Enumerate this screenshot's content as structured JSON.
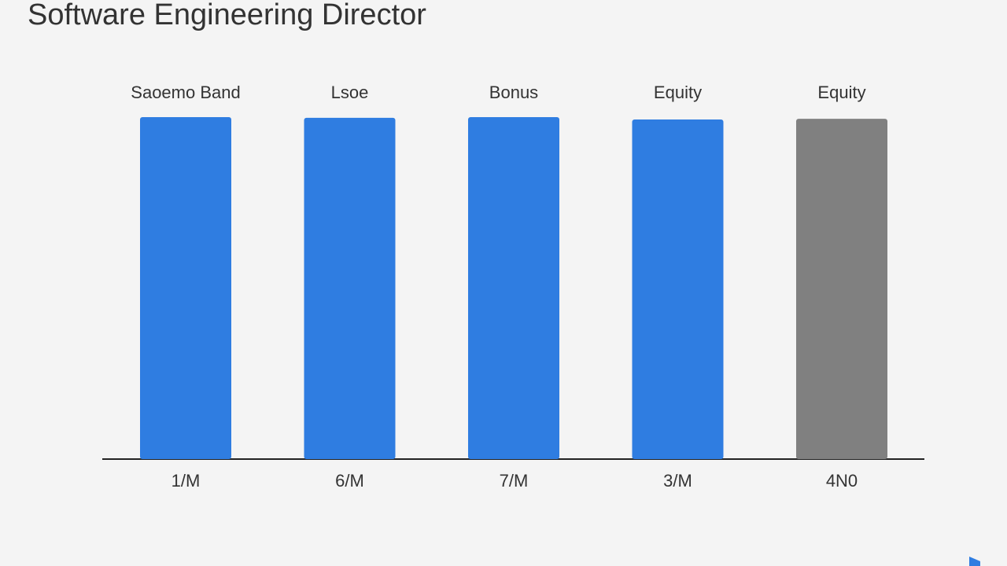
{
  "chart_data": {
    "type": "bar",
    "title": "Software Engineering Director",
    "categories": [
      "Saoemo Band",
      "Lsoe",
      "Bonus",
      "Equity",
      "Equity"
    ],
    "x_labels": [
      "1/M",
      "6/M",
      "7/M",
      "3/M",
      "4N0"
    ],
    "values": [
      100,
      99.8,
      100,
      99.3,
      99.5
    ],
    "colors": [
      "#2f7de1",
      "#2f7de1",
      "#2f7de1",
      "#2f7de1",
      "#808080"
    ],
    "ylim": [
      0,
      100
    ]
  }
}
